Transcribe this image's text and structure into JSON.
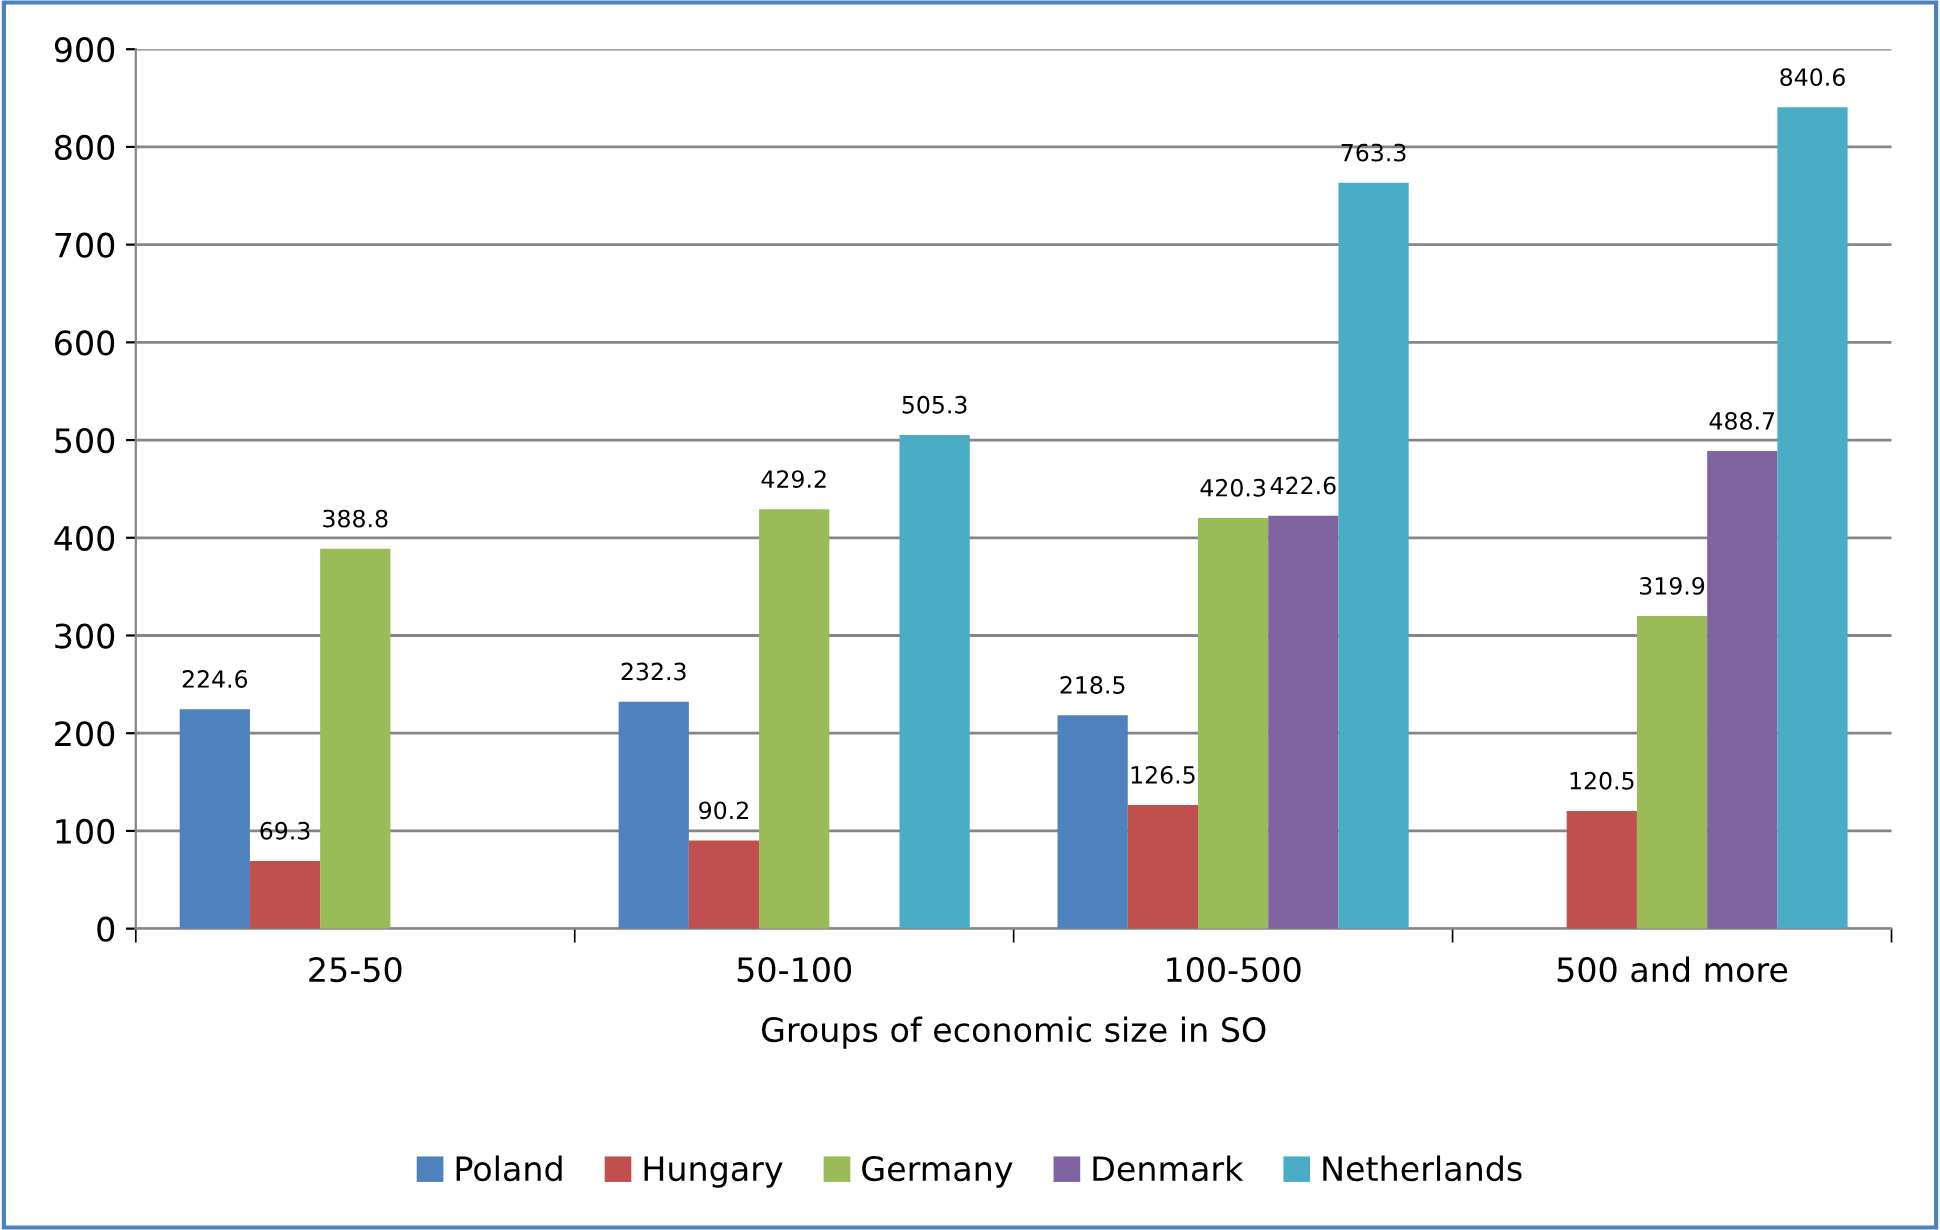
{
  "chart_data": {
    "type": "bar",
    "xlabel": "Groups of economic size in SO",
    "categories": [
      "25-50",
      "50-100",
      "100-500",
      "500 and more"
    ],
    "series": [
      {
        "name": "Poland",
        "color": "#4f81bd",
        "values": [
          224.6,
          232.3,
          218.5,
          null
        ]
      },
      {
        "name": "Hungary",
        "color": "#c0504d",
        "values": [
          69.3,
          90.2,
          126.5,
          120.5
        ]
      },
      {
        "name": "Germany",
        "color": "#9bbb59",
        "values": [
          388.8,
          429.2,
          420.3,
          319.9
        ]
      },
      {
        "name": "Denmark",
        "color": "#8064a2",
        "values": [
          null,
          null,
          422.6,
          488.7
        ]
      },
      {
        "name": "Netherlands",
        "color": "#4bacc6",
        "values": [
          null,
          505.3,
          763.3,
          840.6
        ]
      }
    ],
    "ylim": [
      0,
      900
    ],
    "yticks": [
      0,
      100,
      200,
      300,
      400,
      500,
      600,
      700,
      800,
      900
    ],
    "grid": "y",
    "legend": "bottom",
    "data_labels": true
  }
}
